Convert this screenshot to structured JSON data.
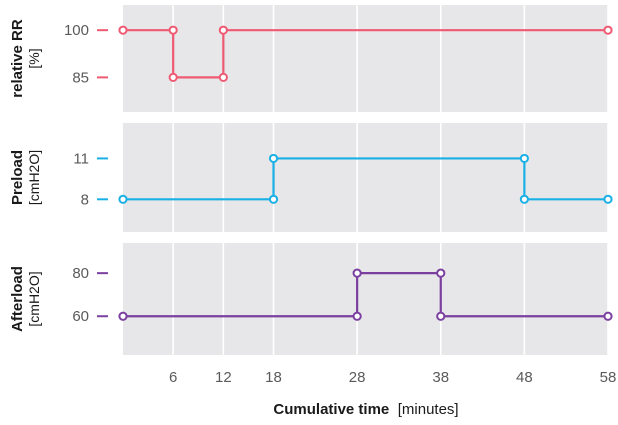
{
  "chart_data": {
    "type": "line",
    "step": true,
    "grid": true,
    "xlabel": "Cumulative time",
    "xlabel_unit": "[minutes]",
    "x_ticks": [
      6,
      12,
      18,
      28,
      38,
      48,
      58
    ],
    "xlim": [
      0,
      58
    ],
    "panels": [
      {
        "ylabel": "relative RR",
        "ylabel_unit": "[%]",
        "y_ticks": [
          85,
          100
        ],
        "ylim": [
          74,
          108
        ],
        "color": "#ef5a73",
        "x": [
          0,
          6,
          6,
          12,
          12,
          58
        ],
        "y": [
          100,
          100,
          85,
          85,
          100,
          100
        ]
      },
      {
        "ylabel": "Preload",
        "ylabel_unit": "[cmH2O]",
        "y_ticks": [
          8,
          11
        ],
        "ylim": [
          5.6,
          13.6
        ],
        "color": "#1ab0e6",
        "x": [
          0,
          18,
          18,
          48,
          48,
          58
        ],
        "y": [
          8,
          8,
          11,
          11,
          8,
          8
        ]
      },
      {
        "ylabel": "Afterload",
        "ylabel_unit": "[cmH2O]",
        "y_ticks": [
          60,
          80
        ],
        "ylim": [
          42,
          94
        ],
        "color": "#7b3fa0",
        "x": [
          0,
          28,
          28,
          38,
          38,
          58
        ],
        "y": [
          60,
          60,
          80,
          80,
          60,
          60
        ]
      }
    ]
  }
}
